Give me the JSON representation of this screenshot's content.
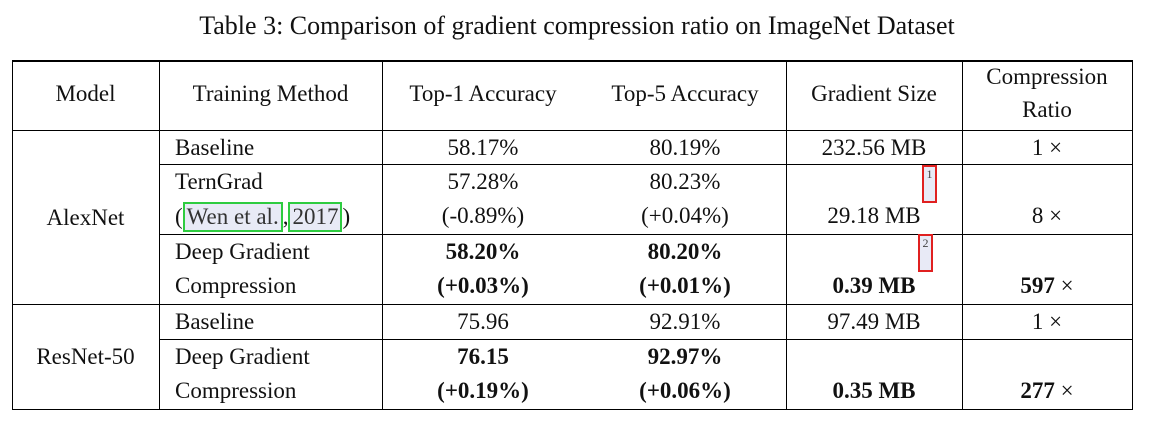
{
  "caption": "Table 3: Comparison of gradient compression ratio on ImageNet Dataset",
  "headers": {
    "model": "Model",
    "method": "Training Method",
    "top1": "Top-1 Accuracy",
    "top5": "Top-5 Accuracy",
    "grad_size": "Gradient Size",
    "ratio_line1": "Compression",
    "ratio_line2": "Ratio"
  },
  "alexnet": {
    "model": "AlexNet",
    "baseline": {
      "method": "Baseline",
      "top1": "58.17%",
      "top5": "80.19%",
      "size": "232.56 MB",
      "ratio": "1 ×"
    },
    "terngrad": {
      "method_line1": "TernGrad",
      "cite_open": "(",
      "cite_author": "Wen et al.",
      "cite_sep": ",",
      "cite_year": "2017",
      "cite_close": ")",
      "top1": "57.28%",
      "top1_delta": "(-0.89%)",
      "top5": "80.23%",
      "top5_delta": "(+0.04%)",
      "size": "29.18 MB",
      "footnote": "1",
      "ratio": "8 ×"
    },
    "dgc": {
      "method_line1": "Deep Gradient",
      "method_line2": "Compression",
      "top1": "58.20%",
      "top1_delta": "(+0.03%)",
      "top5": "80.20%",
      "top5_delta": "(+0.01%)",
      "size": "0.39 MB",
      "footnote": "2",
      "ratio_value": "597",
      "ratio_sign": "×"
    }
  },
  "resnet": {
    "model": "ResNet-50",
    "baseline": {
      "method": "Baseline",
      "top1": "75.96",
      "top5": "92.91%",
      "size": "97.49 MB",
      "ratio": "1 ×"
    },
    "dgc": {
      "method_line1": "Deep Gradient",
      "method_line2": "Compression",
      "top1": "76.15",
      "top1_delta": "(+0.19%)",
      "top5": "92.97%",
      "top5_delta": "(+0.06%)",
      "size": "0.35 MB",
      "ratio_value": "277",
      "ratio_sign": "×"
    }
  }
}
